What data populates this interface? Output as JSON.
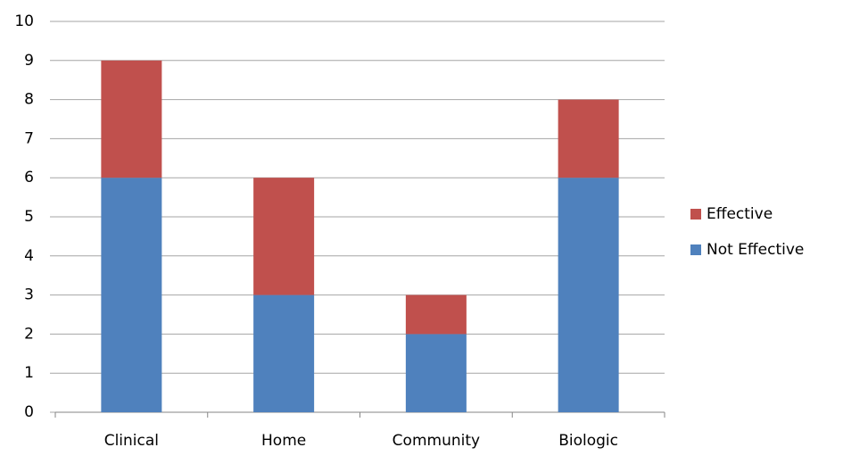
{
  "chart_data": {
    "type": "stacked_bar",
    "categories": [
      "Clinical",
      "Home",
      "Community",
      "Biologic"
    ],
    "series": [
      {
        "name": "Not Effective",
        "color": "#4f81bd",
        "values": [
          6,
          3,
          2,
          6
        ]
      },
      {
        "name": "Effective",
        "color": "#c0504d",
        "values": [
          3,
          3,
          1,
          2
        ]
      }
    ],
    "ylim": [
      0,
      10
    ],
    "yticks": [
      0,
      1,
      2,
      3,
      4,
      5,
      6,
      7,
      8,
      9,
      10
    ],
    "grid": true,
    "legend": "right"
  }
}
